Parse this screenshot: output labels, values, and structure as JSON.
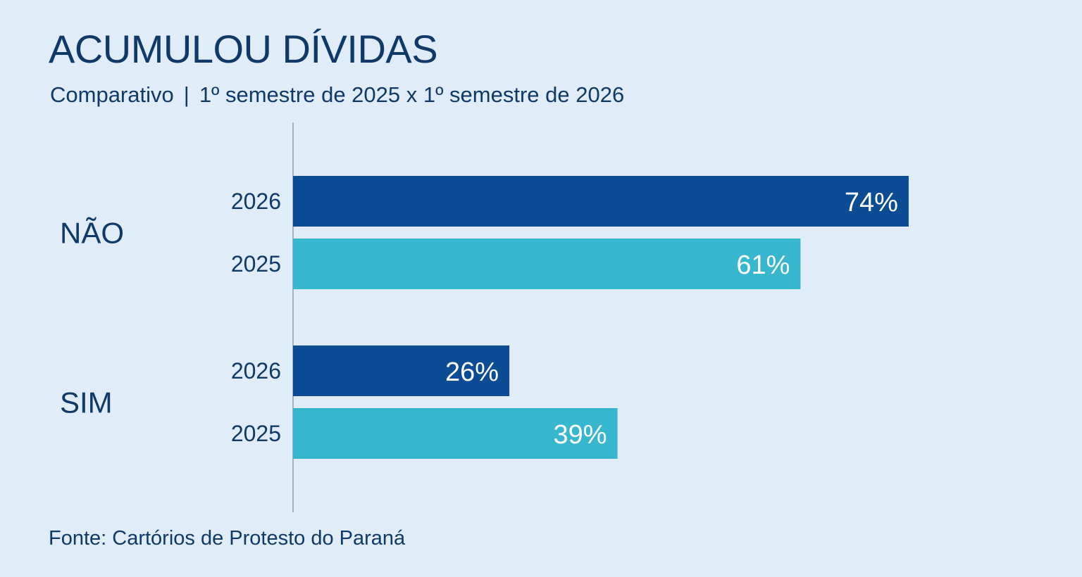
{
  "header": {
    "title": "ACUMULOU DÍVIDAS",
    "subtitle_left": "Comparativo",
    "subtitle_sep": "|",
    "subtitle_right": "1º semestre de 2025 x 1º semestre de 2026"
  },
  "footer": {
    "source": "Fonte: Cartórios de Protesto do Paraná"
  },
  "colors": {
    "background": "#e0ecf8",
    "text": "#0f3a68",
    "series_2026": "#0b4c94",
    "series_2025": "#37b7cd",
    "axis": "#9fb2c8"
  },
  "chart_data": {
    "type": "bar",
    "orientation": "horizontal",
    "unit": "%",
    "categories": [
      "NÃO",
      "SIM"
    ],
    "series": [
      {
        "name": "2026",
        "values": [
          74,
          26
        ]
      },
      {
        "name": "2025",
        "values": [
          61,
          39
        ]
      }
    ],
    "xlim": [
      0,
      100
    ],
    "grid": false
  }
}
